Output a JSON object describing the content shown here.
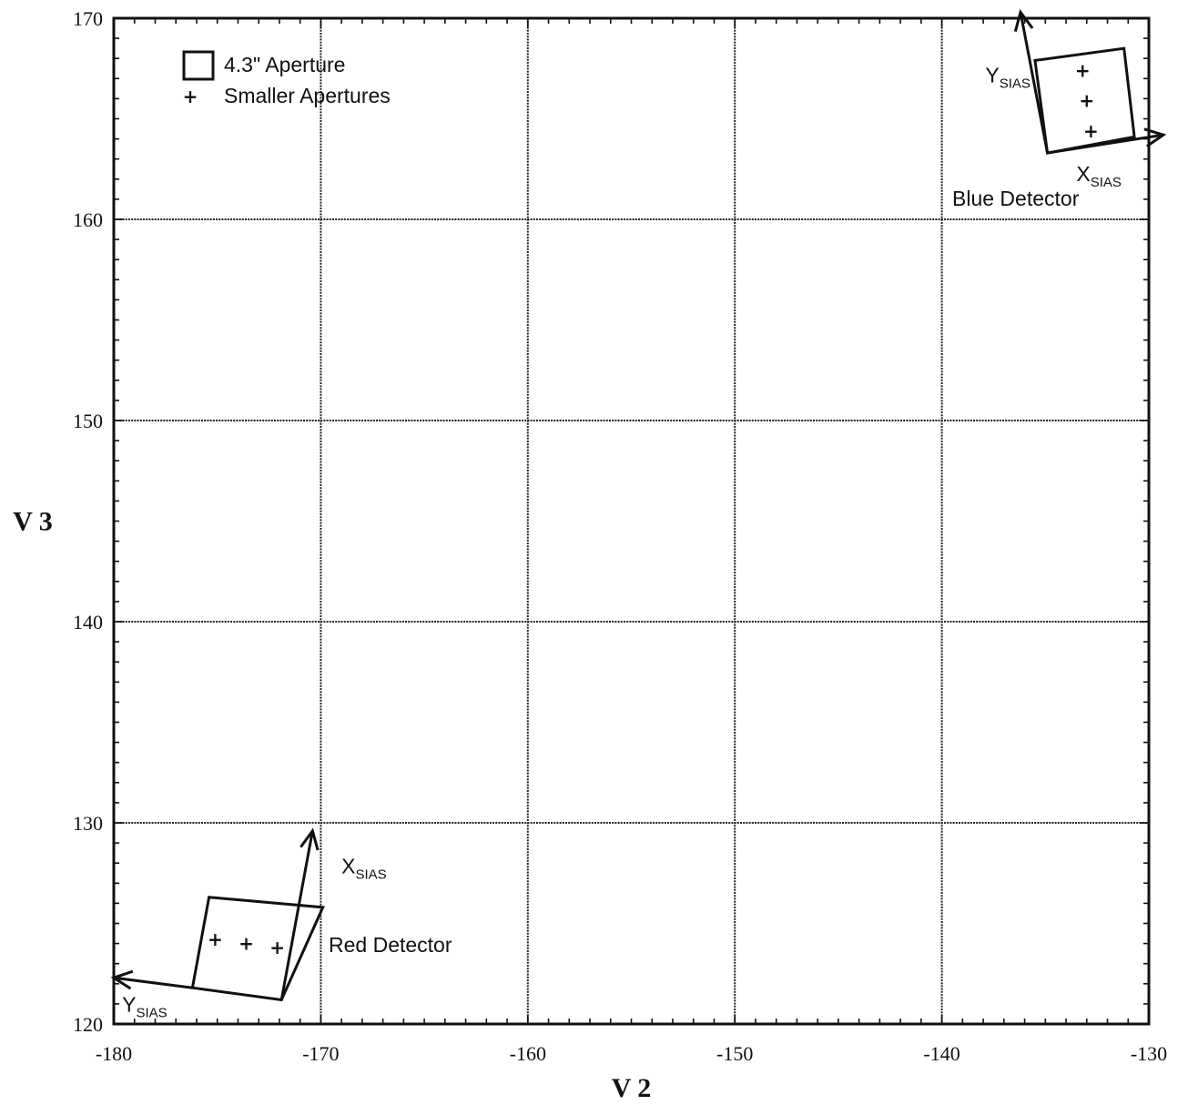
{
  "chart_data": {
    "type": "scatter",
    "xlabel": "V 2",
    "ylabel": "V 3",
    "xlim": [
      -180,
      -130
    ],
    "ylim": [
      120,
      170
    ],
    "xticks": [
      -180,
      -170,
      -160,
      -150,
      -140,
      -130
    ],
    "yticks": [
      120,
      130,
      140,
      150,
      160,
      170
    ],
    "xtick_labels": [
      "-180",
      "-170",
      "-160",
      "-150",
      "-140",
      "-130"
    ],
    "ytick_labels": [
      "120",
      "130",
      "140",
      "150",
      "160",
      "170"
    ],
    "grid": true,
    "legend_position": "top-left",
    "legend": [
      {
        "symbol": "square",
        "label": "4.3\" Aperture"
      },
      {
        "symbol": "plus",
        "label": "Smaller Apertures"
      }
    ],
    "detectors": [
      {
        "name": "Red Detector",
        "aperture_corners": [
          [
            -175.4,
            126.3
          ],
          [
            -169.9,
            125.8
          ],
          [
            -171.9,
            121.2
          ],
          [
            -176.2,
            121.8
          ]
        ],
        "small_apertures": [
          [
            -175.1,
            124.2
          ],
          [
            -173.6,
            124.0
          ],
          [
            -172.1,
            123.8
          ]
        ],
        "x_axis": {
          "label": "X",
          "subscript": "SIAS",
          "from": [
            -171.9,
            121.2
          ],
          "to": [
            -170.4,
            129.6
          ]
        },
        "y_axis": {
          "label": "Y",
          "subscript": "SIAS",
          "from": [
            -176.2,
            121.8
          ],
          "to": [
            -180.0,
            122.3
          ]
        },
        "x_label_pos": [
          -169.0,
          127.5
        ],
        "y_label_pos": [
          -179.6,
          120.6
        ]
      },
      {
        "name": "Blue Detector",
        "aperture_corners": [
          [
            -135.5,
            167.9
          ],
          [
            -131.2,
            168.5
          ],
          [
            -130.7,
            164.1
          ],
          [
            -134.9,
            163.3
          ]
        ],
        "small_apertures": [
          [
            -133.2,
            167.4
          ],
          [
            -133.0,
            165.9
          ],
          [
            -132.8,
            164.4
          ]
        ],
        "x_axis": {
          "label": "X",
          "subscript": "SIAS",
          "from": [
            -134.9,
            163.3
          ],
          "to": [
            -129.3,
            164.2
          ]
        },
        "y_axis": {
          "label": "Y",
          "subscript": "SIAS",
          "from": [
            -134.9,
            163.3
          ],
          "to": [
            -136.2,
            170.3
          ]
        },
        "x_label_pos": [
          -133.5,
          161.9
        ],
        "y_label_pos": [
          -137.9,
          166.8
        ]
      }
    ]
  }
}
